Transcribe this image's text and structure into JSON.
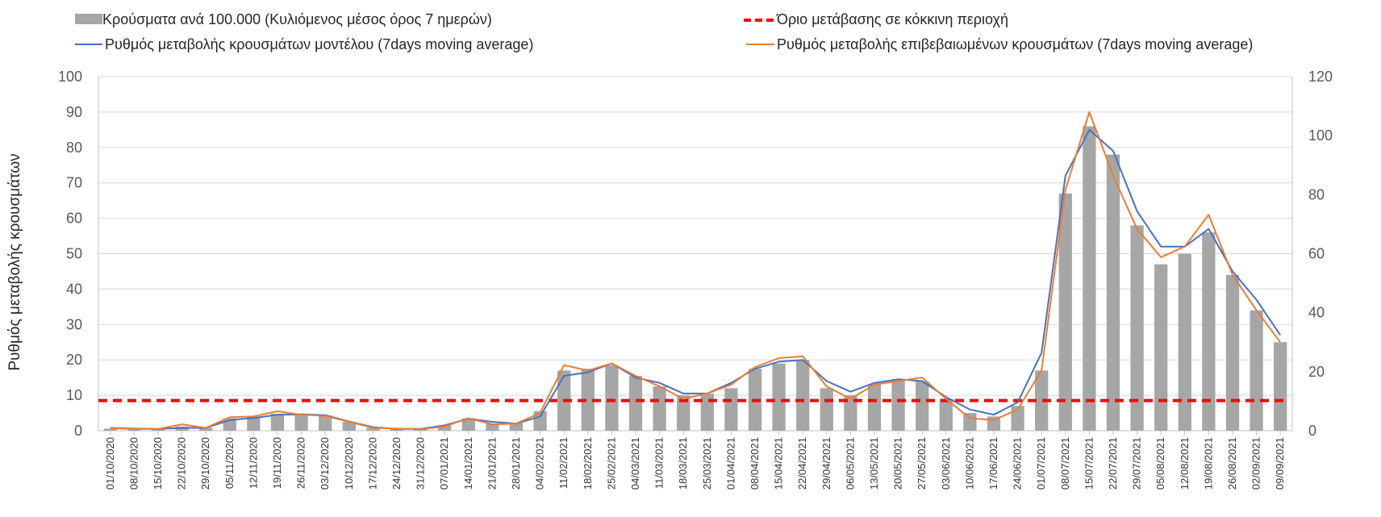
{
  "chart_data": {
    "type": "bar",
    "title": "",
    "ylabel": "Ρυθμός μεταβολής κρουσμάτων",
    "ylabel_right": "",
    "ylim": [
      0,
      100
    ],
    "ylim_right": [
      0,
      120
    ],
    "yticks": [
      "0",
      "10",
      "20",
      "30",
      "40",
      "50",
      "60",
      "70",
      "80",
      "90",
      "100"
    ],
    "yticks_right": [
      "0",
      "20",
      "40",
      "60",
      "80",
      "100",
      "120"
    ],
    "grid": true,
    "legend_position": "top",
    "threshold": 8.5,
    "colors": {
      "bars": "#a6a6a6",
      "threshold": "#ff0000",
      "model": "#4472c4",
      "confirmed": "#ed7d31",
      "grid": "#d9d9d9"
    },
    "legend": [
      {
        "label": "Κρούσματα ανά 100.000 (Κυλιόμενος μέσος όρος 7 ημερών)",
        "kind": "bar"
      },
      {
        "label": "Όριο μετάβασης σε κόκκινη περιοχή",
        "kind": "dash"
      },
      {
        "label": "Ρυθμός μεταβολής κρουσμάτων μοντέλου (7days moving average)",
        "kind": "model"
      },
      {
        "label": "Ρυθμός μεταβολής επιβεβαιωμένων κρουσμάτων (7days moving average)",
        "kind": "confirmed"
      }
    ],
    "x": [
      "01/10/2020",
      "08/10/2020",
      "15/10/2020",
      "22/10/2020",
      "29/10/2020",
      "05/11/2020",
      "12/11/2020",
      "19/11/2020",
      "26/11/2020",
      "03/12/2020",
      "10/12/2020",
      "17/12/2020",
      "24/12/2020",
      "31/12/2020",
      "07/01/2021",
      "14/01/2021",
      "21/01/2021",
      "28/01/2021",
      "04/02/2021",
      "11/02/2021",
      "18/02/2021",
      "25/02/2021",
      "04/03/2021",
      "11/03/2021",
      "18/03/2021",
      "25/03/2021",
      "01/04/2021",
      "08/04/2021",
      "15/04/2021",
      "22/04/2021",
      "29/04/2021",
      "06/05/2021",
      "13/05/2021",
      "20/05/2021",
      "27/05/2021",
      "03/06/2021",
      "10/06/2021",
      "17/06/2021",
      "24/06/2021",
      "01/07/2021",
      "08/07/2021",
      "15/07/2021",
      "22/07/2021",
      "29/07/2021",
      "05/08/2021",
      "12/08/2021",
      "19/08/2021",
      "26/08/2021",
      "02/09/2021",
      "09/09/2021"
    ],
    "series": [
      {
        "name": "Κρούσματα ανά 100.000 (Κυλιόμενος μέσος όρος 7 ημερών)",
        "type": "bar",
        "values": [
          0.6,
          0.5,
          0.5,
          1.2,
          0.8,
          3.5,
          3.8,
          4.8,
          4.5,
          4.3,
          2.5,
          0.8,
          0.6,
          0.5,
          1.5,
          3.5,
          2.0,
          2.2,
          5.5,
          17.0,
          17.5,
          18.5,
          15.5,
          12.5,
          10.0,
          10.5,
          12.0,
          17.5,
          19.0,
          20.0,
          12.0,
          10.0,
          13.0,
          14.0,
          14.0,
          9.0,
          5.0,
          4.0,
          7.0,
          17.0,
          67.0,
          86.0,
          78.0,
          58.0,
          47.0,
          50.0,
          56.0,
          44.0,
          34.0,
          25.0
        ]
      },
      {
        "name": "Ρυθμός μεταβολής κρουσμάτων μοντέλου (7days moving average)",
        "type": "line",
        "values": [
          0.8,
          0.6,
          0.5,
          0.8,
          0.8,
          3.0,
          3.6,
          4.5,
          4.6,
          4.4,
          2.6,
          1.0,
          0.5,
          0.5,
          1.5,
          3.4,
          2.5,
          2.0,
          4.0,
          15.5,
          16.5,
          19.0,
          15.0,
          13.5,
          10.5,
          10.5,
          13.5,
          17.5,
          19.5,
          20.0,
          14.0,
          11.0,
          13.5,
          14.5,
          14.0,
          9.5,
          6.0,
          4.5,
          8.0,
          22.0,
          72.0,
          85.0,
          79.0,
          62.0,
          52.0,
          52.0,
          57.0,
          45.0,
          37.0,
          27.0
        ]
      },
      {
        "name": "Ρυθμός μεταβολής επιβεβαιωμένων κρουσμάτων (7days moving average)",
        "type": "line",
        "values": [
          0.7,
          0.5,
          0.5,
          1.8,
          0.8,
          3.8,
          4.0,
          5.5,
          4.5,
          4.2,
          2.5,
          0.8,
          0.6,
          0.4,
          1.2,
          3.5,
          1.8,
          2.0,
          5.0,
          18.5,
          17.0,
          19.0,
          15.5,
          12.5,
          9.0,
          10.5,
          13.0,
          18.0,
          20.5,
          21.0,
          12.5,
          9.0,
          13.0,
          14.0,
          15.0,
          9.0,
          3.5,
          3.0,
          6.0,
          17.0,
          68.0,
          90.0,
          72.0,
          57.0,
          49.0,
          52.0,
          61.0,
          44.0,
          34.0,
          25.0
        ]
      }
    ]
  }
}
